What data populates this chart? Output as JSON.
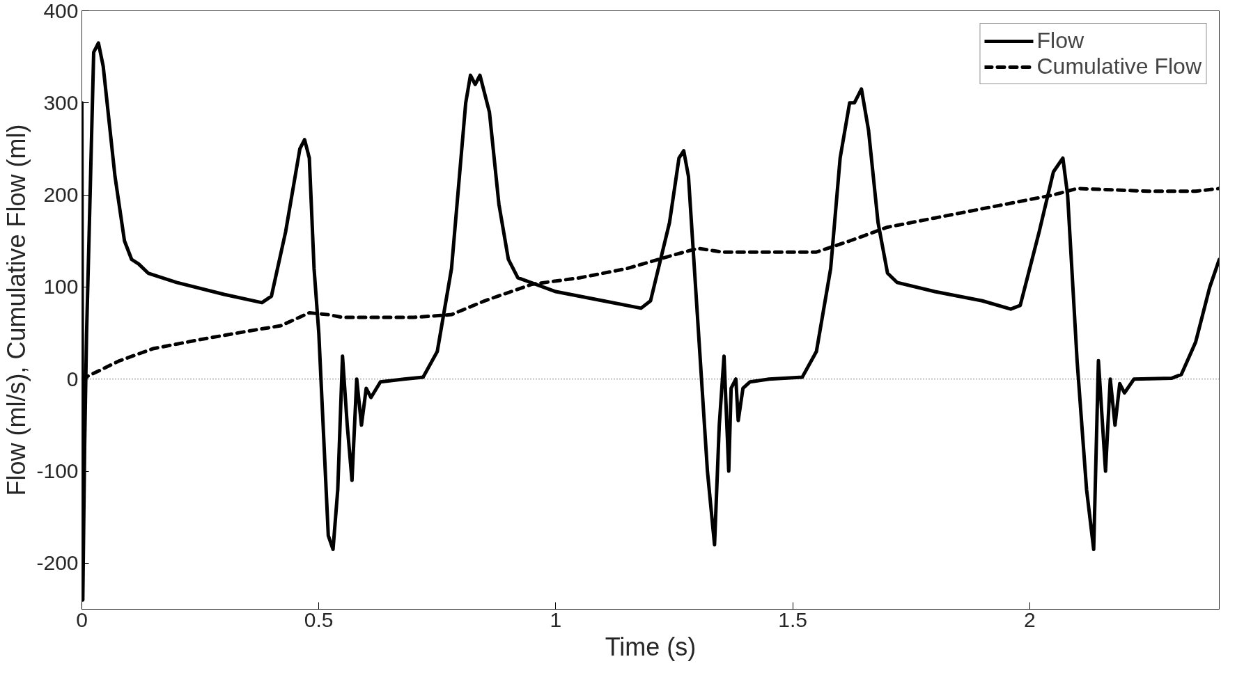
{
  "chart_data": {
    "type": "line",
    "xlabel": "Time (s)",
    "ylabel": "Flow (ml/s), Cumulative Flow (ml)",
    "xlim": [
      0,
      2.4
    ],
    "ylim": [
      -250,
      400
    ],
    "xticks": [
      0,
      0.5,
      1,
      1.5,
      2
    ],
    "yticks": [
      -200,
      -100,
      0,
      100,
      200,
      300,
      400
    ],
    "grid": false,
    "legend": "top right",
    "marker": "none",
    "ref_lines": [
      {
        "axis": "y",
        "value": 0,
        "label": null,
        "color": "#000000",
        "line_style": "dotted"
      }
    ],
    "series": [
      {
        "name": "Flow",
        "color": "#000000",
        "line_style": "solid",
        "x": [
          0,
          0.002,
          0.006,
          0.01,
          0.015,
          0.025,
          0.035,
          0.045,
          0.07,
          0.09,
          0.105,
          0.12,
          0.14,
          0.2,
          0.3,
          0.38,
          0.4,
          0.43,
          0.46,
          0.47,
          0.48,
          0.49,
          0.5,
          0.52,
          0.53,
          0.54,
          0.55,
          0.56,
          0.57,
          0.58,
          0.59,
          0.6,
          0.61,
          0.63,
          0.68,
          0.72,
          0.75,
          0.78,
          0.81,
          0.82,
          0.83,
          0.84,
          0.86,
          0.88,
          0.9,
          0.92,
          1.0,
          1.1,
          1.18,
          1.2,
          1.24,
          1.26,
          1.27,
          1.28,
          1.3,
          1.32,
          1.335,
          1.345,
          1.355,
          1.365,
          1.37,
          1.38,
          1.385,
          1.395,
          1.41,
          1.45,
          1.52,
          1.55,
          1.58,
          1.6,
          1.62,
          1.63,
          1.645,
          1.66,
          1.68,
          1.7,
          1.72,
          1.8,
          1.9,
          1.96,
          1.98,
          2.02,
          2.05,
          2.07,
          2.08,
          2.1,
          2.12,
          2.135,
          2.145,
          2.16,
          2.17,
          2.18,
          2.19,
          2.2,
          2.22,
          2.3,
          2.32,
          2.35,
          2.38,
          2.39,
          2.4
        ],
        "values": [
          300,
          -240,
          -70,
          50,
          150,
          355,
          365,
          340,
          220,
          150,
          130,
          125,
          115,
          105,
          92,
          83,
          90,
          160,
          250,
          260,
          240,
          120,
          50,
          -170,
          -185,
          -120,
          25,
          -50,
          -110,
          0,
          -50,
          -10,
          -20,
          -3,
          0,
          2,
          30,
          120,
          300,
          330,
          320,
          330,
          290,
          190,
          130,
          110,
          95,
          85,
          77,
          85,
          170,
          240,
          248,
          220,
          60,
          -100,
          -180,
          -50,
          25,
          -100,
          -10,
          0,
          -45,
          -10,
          -3,
          0,
          2,
          30,
          120,
          240,
          300,
          300,
          315,
          270,
          170,
          115,
          105,
          95,
          85,
          76,
          80,
          160,
          225,
          240,
          200,
          20,
          -120,
          -185,
          20,
          -100,
          0,
          -50,
          -5,
          -15,
          0,
          1,
          5,
          40,
          100,
          115,
          130
        ]
      },
      {
        "name": "Cumulative Flow",
        "color": "#000000",
        "line_style": "dashed",
        "x": [
          0,
          0.02,
          0.08,
          0.15,
          0.25,
          0.35,
          0.42,
          0.48,
          0.52,
          0.55,
          0.7,
          0.78,
          0.85,
          0.95,
          1.05,
          1.15,
          1.25,
          1.3,
          1.35,
          1.55,
          1.62,
          1.7,
          1.8,
          1.95,
          2.05,
          2.1,
          2.15,
          2.25,
          2.35,
          2.4
        ],
        "values": [
          0,
          5,
          20,
          33,
          43,
          52,
          58,
          72,
          70,
          67,
          67,
          70,
          85,
          103,
          110,
          120,
          135,
          142,
          138,
          138,
          150,
          165,
          175,
          190,
          200,
          207,
          206,
          204,
          204,
          207
        ]
      }
    ]
  }
}
